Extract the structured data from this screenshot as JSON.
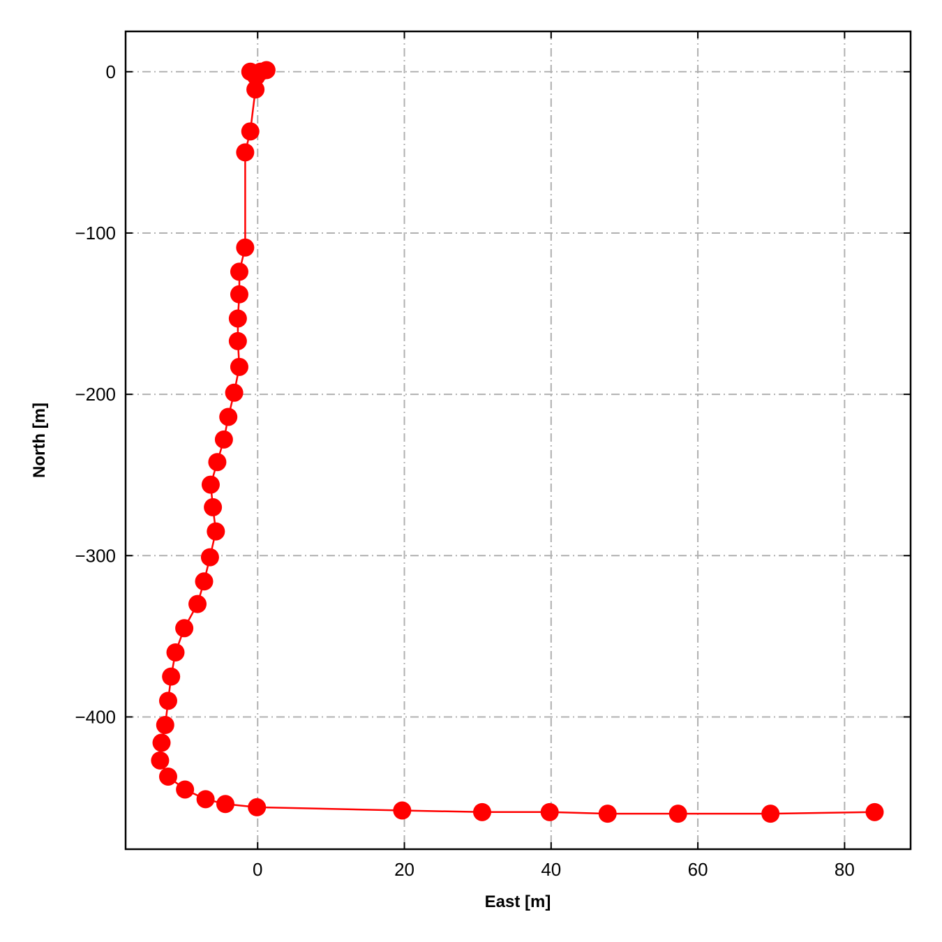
{
  "chart_data": {
    "type": "line",
    "xlabel": "East [m]",
    "ylabel": "North [m]",
    "xlim": [
      -18,
      89
    ],
    "ylim": [
      -482,
      25
    ],
    "xticks": [
      0,
      20,
      40,
      60,
      80
    ],
    "yticks": [
      0,
      -100,
      -200,
      -300,
      -400
    ],
    "xtick_labels": [
      "0",
      "20",
      "40",
      "60",
      "80"
    ],
    "ytick_labels": [
      "0",
      "−100",
      "−200",
      "−300",
      "−400"
    ],
    "grid": true,
    "line_color": "#ff0000",
    "series": [
      {
        "marker": "circle",
        "color": "#ff0000",
        "x": [
          1.2,
          0.4,
          -0.6,
          -1.0,
          -0.2,
          -0.3,
          -1.0,
          -1.7,
          -1.7,
          -2.5,
          -2.5,
          -2.7,
          -2.7,
          -2.5,
          -3.2,
          -4.0,
          -4.6,
          -5.5,
          -6.4,
          -6.1,
          -5.7,
          -6.5,
          -7.3,
          -8.2,
          -10.0,
          -11.2,
          -11.8,
          -12.2,
          -12.6,
          -13.1,
          -13.3,
          -12.2,
          -9.9,
          -7.1,
          -4.4,
          -0.1,
          19.7,
          30.6,
          39.8,
          47.7,
          57.3,
          69.9,
          84.1
        ],
        "y": [
          1,
          0,
          -1,
          0,
          -3,
          -11,
          -37,
          -50,
          -109,
          -124,
          -138,
          -153,
          -167,
          -183,
          -199,
          -214,
          -228,
          -242,
          -256,
          -270,
          -285,
          -301,
          -316,
          -330,
          -345,
          -360,
          -375,
          -390,
          -405,
          -416,
          -427,
          -437,
          -445,
          -451,
          -454,
          -456,
          -458,
          -459,
          -459,
          -460,
          -460,
          -460,
          -459
        ]
      }
    ]
  }
}
